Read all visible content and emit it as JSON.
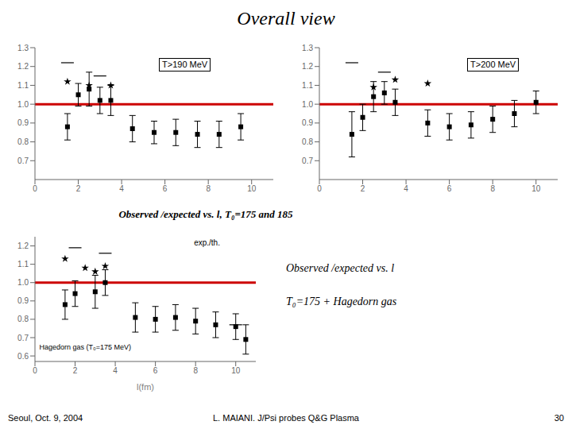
{
  "title": "Overall view",
  "annotations": [
    "Observed /expected vs. l, T₀=175 and 185",
    "Observed /expected vs. l",
    "T₀=175 + Hagedorn gas"
  ],
  "footer": [
    "Seoul, Oct. 9, 2004",
    "L. MAIANI. J/Psi probes Q&G Plasma",
    "30"
  ],
  "chart_data": [
    {
      "type": "scatter",
      "xlim": [
        0,
        11
      ],
      "xticks": [
        0,
        2,
        4,
        6,
        8,
        10
      ],
      "ylim": [
        0.6,
        1.3
      ],
      "yticks": [
        0.7,
        0.8,
        0.9,
        {
          "value": 1.0,
          "label": "1.0"
        },
        1.1,
        1.2,
        1.3
      ],
      "grid": false,
      "annotations": [
        "T>190 MeV"
      ],
      "series": [
        {
          "type": "scatter",
          "marker": "square",
          "color": "black",
          "x": [
            1.5,
            2.0,
            2.5,
            3.0,
            3.5,
            4.5,
            5.5,
            6.5,
            7.5,
            8.5,
            9.5
          ],
          "values": [
            0.88,
            1.05,
            1.08,
            1.02,
            1.02,
            0.87,
            0.85,
            0.85,
            0.84,
            0.84,
            0.88
          ],
          "yerr": [
            0.07,
            0.06,
            0.09,
            0.07,
            0.08,
            0.07,
            0.06,
            0.07,
            0.07,
            0.07,
            0.07
          ]
        },
        {
          "type": "scatter",
          "marker": "star",
          "color": "black",
          "x": [
            1.5,
            2.5,
            3.5
          ],
          "values": [
            1.12,
            1.1,
            1.1
          ]
        },
        {
          "type": "scatter",
          "marker": "dash",
          "color": "black",
          "x": [
            1.5,
            3.0
          ],
          "values": [
            1.22,
            1.15
          ]
        },
        {
          "type": "hline",
          "color": "#cc0000",
          "values": [
            1.0
          ]
        }
      ]
    },
    {
      "type": "scatter",
      "xlim": [
        0,
        11
      ],
      "xticks": [
        0,
        2,
        4,
        6,
        8,
        10
      ],
      "ylim": [
        0.6,
        1.3
      ],
      "yticks": [
        0.7,
        0.8,
        0.9,
        {
          "value": 1.0,
          "label": "1.0"
        },
        1.1,
        1.2,
        1.3
      ],
      "grid": false,
      "annotations": [
        "T>200 MeV"
      ],
      "series": [
        {
          "type": "scatter",
          "marker": "square",
          "color": "black",
          "x": [
            1.5,
            2.0,
            2.5,
            3.0,
            3.5,
            5.0,
            6.0,
            7.0,
            8.0,
            9.0,
            10.0
          ],
          "values": [
            0.84,
            0.93,
            1.04,
            1.06,
            1.01,
            0.9,
            0.88,
            0.89,
            0.92,
            0.95,
            1.01
          ],
          "yerr": [
            0.12,
            0.07,
            0.08,
            0.06,
            0.07,
            0.07,
            0.07,
            0.07,
            0.07,
            0.07,
            0.06
          ]
        },
        {
          "type": "scatter",
          "marker": "star",
          "color": "black",
          "x": [
            2.5,
            3.5,
            5.0
          ],
          "values": [
            1.09,
            1.13,
            1.11
          ]
        },
        {
          "type": "scatter",
          "marker": "dash",
          "color": "black",
          "x": [
            1.5,
            3.0
          ],
          "values": [
            1.22,
            1.17
          ]
        },
        {
          "type": "hline",
          "color": "#cc0000",
          "values": [
            1.0
          ]
        }
      ]
    },
    {
      "type": "scatter",
      "x_label": "l(fm)",
      "xlim": [
        0,
        11
      ],
      "xticks": [
        0,
        2,
        4,
        6,
        8,
        10
      ],
      "ylim": [
        0.57,
        1.25
      ],
      "yticks": [
        0.6,
        0.7,
        0.8,
        0.9,
        {
          "value": 1.0,
          "label": "1.0"
        },
        1.1,
        1.2
      ],
      "grid": false,
      "annotations": [
        "exp./th.",
        "Hagedorn gas (T₀=175 MeV)"
      ],
      "series": [
        {
          "type": "scatter",
          "marker": "square",
          "color": "black",
          "x": [
            1.5,
            2.0,
            3.0,
            3.5,
            5.0,
            6.0,
            7.0,
            8.0,
            9.0,
            10.0,
            10.5
          ],
          "values": [
            0.88,
            0.94,
            0.95,
            1.0,
            0.81,
            0.8,
            0.81,
            0.79,
            0.77,
            0.76,
            0.69
          ],
          "yerr": [
            0.08,
            0.07,
            0.09,
            0.07,
            0.08,
            0.07,
            0.07,
            0.07,
            0.07,
            0.07,
            0.08
          ]
        },
        {
          "type": "scatter",
          "marker": "star",
          "color": "black",
          "x": [
            1.5,
            2.5,
            3.0,
            3.5
          ],
          "values": [
            1.13,
            1.08,
            1.06,
            1.09
          ]
        },
        {
          "type": "scatter",
          "marker": "dash",
          "color": "black",
          "x": [
            2.0,
            3.5,
            10.0
          ],
          "values": [
            1.19,
            1.16,
            0.77
          ]
        },
        {
          "type": "hline",
          "color": "#cc0000",
          "values": [
            1.0
          ]
        }
      ]
    }
  ]
}
